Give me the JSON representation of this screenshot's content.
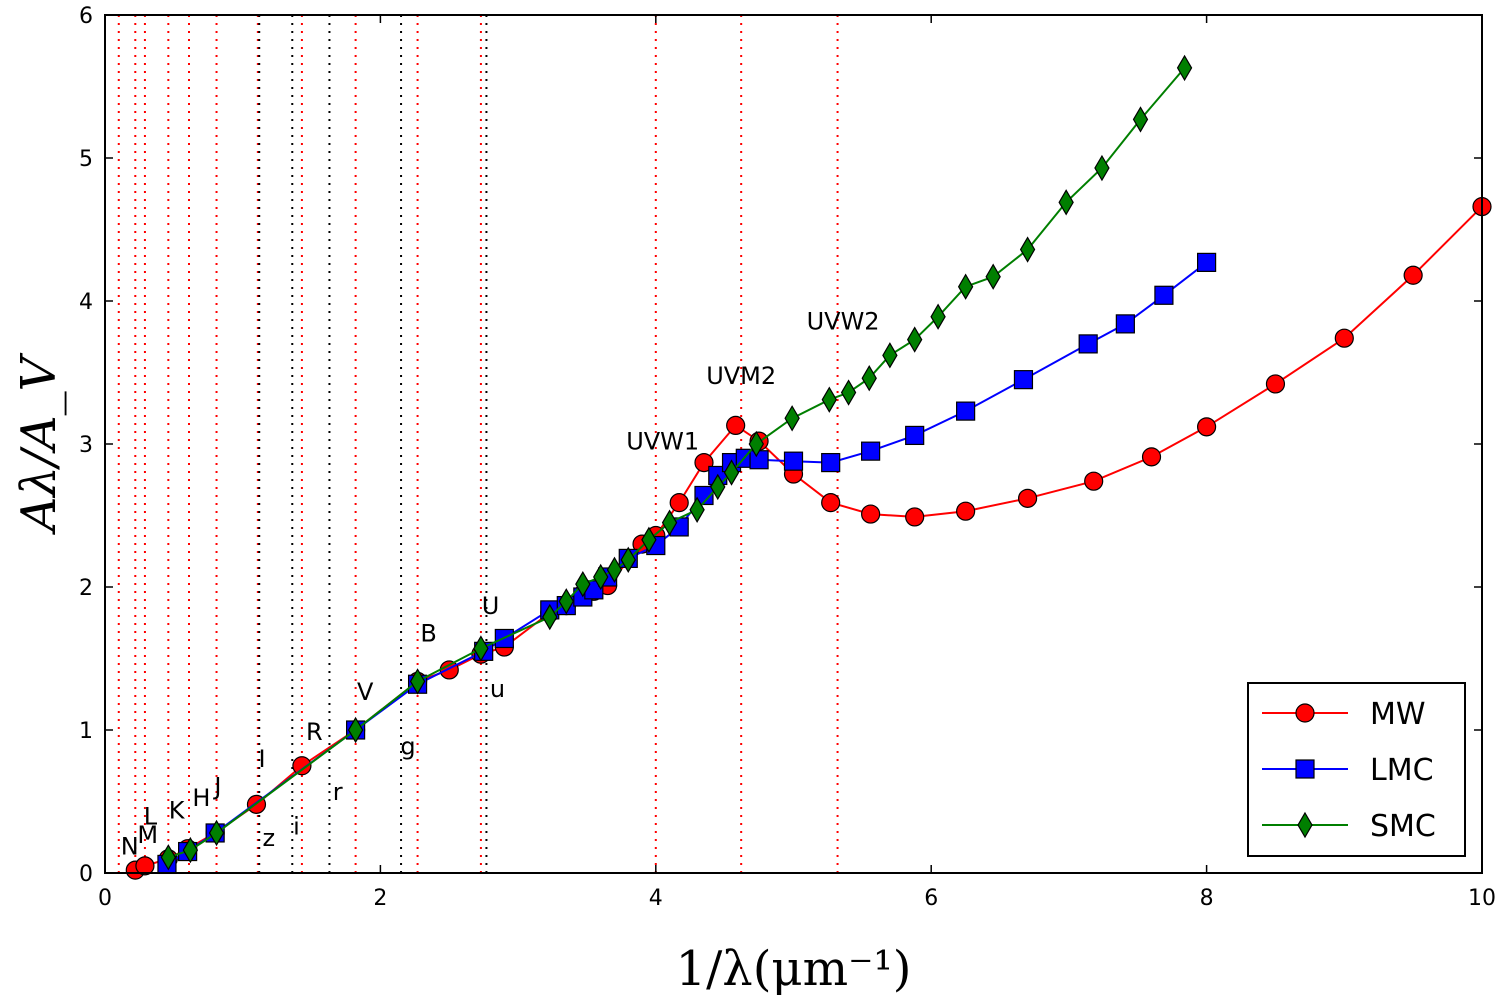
{
  "chart_data": {
    "type": "line",
    "xlabel": "1/λ(μm⁻¹)",
    "ylabel": "A_λ/A_V",
    "xlim": [
      0,
      10
    ],
    "ylim": [
      0,
      6
    ],
    "xticks": [
      0,
      2,
      4,
      6,
      8,
      10
    ],
    "yticks": [
      0,
      1,
      2,
      3,
      4,
      5,
      6
    ],
    "legend_position": "bottom-right",
    "grid": false,
    "series": [
      {
        "name": "MW",
        "color": "#ff0000",
        "marker": "circle",
        "x": [
          0.22,
          0.29,
          0.46,
          0.6,
          0.8,
          1.1,
          1.43,
          1.82,
          2.27,
          2.5,
          2.73,
          2.9,
          3.23,
          3.35,
          3.47,
          3.55,
          3.65,
          3.9,
          4.0,
          4.17,
          4.35,
          4.58,
          4.75,
          5.0,
          5.27,
          5.56,
          5.88,
          6.25,
          6.7,
          7.18,
          7.6,
          8.0,
          8.5,
          9.0,
          9.5,
          10.0
        ],
        "y": [
          0.02,
          0.05,
          0.1,
          0.17,
          0.28,
          0.48,
          0.75,
          1.0,
          1.34,
          1.42,
          1.53,
          1.58,
          1.82,
          1.87,
          1.95,
          1.97,
          2.01,
          2.3,
          2.36,
          2.59,
          2.87,
          3.13,
          3.02,
          2.79,
          2.59,
          2.51,
          2.49,
          2.53,
          2.62,
          2.74,
          2.91,
          3.12,
          3.42,
          3.74,
          4.18,
          4.66
        ]
      },
      {
        "name": "LMC",
        "color": "#0000ff",
        "marker": "square",
        "x": [
          0.45,
          0.6,
          0.8,
          1.82,
          2.27,
          2.75,
          2.9,
          3.23,
          3.35,
          3.47,
          3.55,
          3.65,
          3.8,
          4.0,
          4.17,
          4.35,
          4.45,
          4.55,
          4.65,
          4.75,
          5.0,
          5.27,
          5.56,
          5.88,
          6.25,
          6.67,
          7.14,
          7.41,
          7.69,
          8.0
        ],
        "y": [
          0.06,
          0.15,
          0.28,
          1.0,
          1.32,
          1.55,
          1.64,
          1.84,
          1.87,
          1.93,
          1.98,
          2.07,
          2.2,
          2.29,
          2.42,
          2.64,
          2.78,
          2.87,
          2.9,
          2.89,
          2.88,
          2.87,
          2.95,
          3.06,
          3.23,
          3.45,
          3.7,
          3.84,
          4.04,
          4.27
        ]
      },
      {
        "name": "SMC",
        "color": "#007f00",
        "marker": "diamond",
        "x": [
          0.46,
          0.62,
          0.81,
          1.82,
          2.27,
          2.73,
          3.23,
          3.35,
          3.47,
          3.6,
          3.7,
          3.8,
          3.95,
          4.1,
          4.3,
          4.45,
          4.55,
          4.73,
          4.99,
          5.26,
          5.4,
          5.55,
          5.7,
          5.88,
          6.05,
          6.25,
          6.45,
          6.7,
          6.98,
          7.24,
          7.52,
          7.84
        ],
        "y": [
          0.11,
          0.16,
          0.28,
          1.0,
          1.34,
          1.57,
          1.79,
          1.9,
          2.02,
          2.07,
          2.12,
          2.19,
          2.33,
          2.45,
          2.54,
          2.7,
          2.8,
          3.0,
          3.18,
          3.31,
          3.36,
          3.46,
          3.62,
          3.73,
          3.89,
          4.1,
          4.17,
          4.36,
          4.69,
          4.93,
          5.27,
          5.63
        ]
      }
    ],
    "band_lines": {
      "red": [
        0.1,
        0.22,
        0.29,
        0.46,
        0.61,
        0.81,
        1.11,
        1.43,
        1.82,
        2.27,
        2.73,
        4.0,
        4.62,
        5.32
      ],
      "black": [
        1.12,
        1.36,
        1.63,
        2.15,
        2.77
      ]
    },
    "band_labels": [
      {
        "text": "N",
        "x": 0.18,
        "y": 0.13
      },
      {
        "text": "M",
        "x": 0.31,
        "y": 0.21
      },
      {
        "text": "L",
        "x": 0.33,
        "y": 0.34
      },
      {
        "text": "K",
        "x": 0.52,
        "y": 0.38
      },
      {
        "text": "H",
        "x": 0.7,
        "y": 0.47
      },
      {
        "text": "J",
        "x": 0.82,
        "y": 0.55
      },
      {
        "text": "I",
        "x": 1.14,
        "y": 0.74
      },
      {
        "text": "z",
        "x": 1.19,
        "y": 0.19
      },
      {
        "text": "i",
        "x": 1.39,
        "y": 0.27
      },
      {
        "text": "R",
        "x": 1.52,
        "y": 0.93
      },
      {
        "text": "r",
        "x": 1.69,
        "y": 0.51
      },
      {
        "text": "V",
        "x": 1.89,
        "y": 1.21
      },
      {
        "text": "g",
        "x": 2.2,
        "y": 0.83
      },
      {
        "text": "B",
        "x": 2.35,
        "y": 1.62
      },
      {
        "text": "U",
        "x": 2.8,
        "y": 1.81
      },
      {
        "text": "u",
        "x": 2.85,
        "y": 1.23
      },
      {
        "text": "UVW1",
        "x": 4.05,
        "y": 2.96
      },
      {
        "text": "UVM2",
        "x": 4.62,
        "y": 3.42
      },
      {
        "text": "UVW2",
        "x": 5.36,
        "y": 3.8
      }
    ]
  }
}
